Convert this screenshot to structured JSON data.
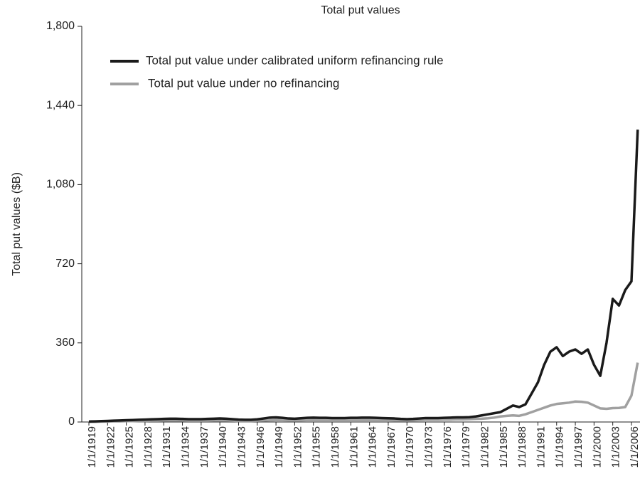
{
  "chart_data": {
    "type": "line",
    "title": "Total put values",
    "y_label": "Total put values ($B)",
    "categories": [
      "1/1/1919",
      null,
      null,
      "1/1/1922",
      null,
      null,
      "1/1/1925",
      null,
      null,
      "1/1/1928",
      null,
      null,
      "1/1/1931",
      null,
      null,
      "1/1/1934",
      null,
      null,
      "1/1/1937",
      null,
      null,
      "1/1/1940",
      null,
      null,
      "1/1/1943",
      null,
      null,
      "1/1/1946",
      null,
      null,
      "1/1/1949",
      null,
      null,
      "1/1/1952",
      null,
      null,
      "1/1/1955",
      null,
      null,
      "1/1/1958",
      null,
      null,
      "1/1/1961",
      null,
      null,
      "1/1/1964",
      null,
      null,
      "1/1/1967",
      null,
      null,
      "1/1/1970",
      null,
      null,
      "1/1/1973",
      null,
      null,
      "1/1/1976",
      null,
      null,
      "1/1/1979",
      null,
      null,
      "1/1/1982",
      null,
      null,
      "1/1/1985",
      null,
      null,
      "1/1/1988",
      null,
      null,
      "1/1/1991",
      null,
      null,
      "1/1/1994",
      null,
      null,
      "1/1/1997",
      null,
      null,
      "1/1/2000",
      null,
      null,
      "1/1/2003",
      null,
      null,
      "1/1/2006",
      null
    ],
    "series": [
      {
        "name": "Total put value under calibrated uniform refinancing rule",
        "color": "#1a1a1a",
        "values": [
          2,
          3,
          4,
          5,
          6,
          7,
          8,
          9,
          10,
          11,
          12,
          13,
          14,
          15,
          15,
          14,
          13,
          13,
          13,
          14,
          15,
          16,
          15,
          13,
          11,
          10,
          10,
          12,
          16,
          20,
          21,
          19,
          16,
          15,
          17,
          19,
          20,
          19,
          19,
          18,
          18,
          18,
          19,
          19,
          20,
          20,
          19,
          18,
          17,
          16,
          14,
          13,
          14,
          16,
          18,
          18,
          18,
          19,
          20,
          21,
          21,
          22,
          25,
          30,
          35,
          40,
          45,
          60,
          75,
          68,
          80,
          130,
          180,
          260,
          320,
          340,
          300,
          320,
          330,
          310,
          330,
          260,
          210,
          360,
          560,
          530,
          600,
          640,
          1330
        ]
      },
      {
        "name": "Total put value under no refinancing",
        "color": "#a0a0a0",
        "values": [
          1,
          1,
          2,
          2,
          3,
          3,
          4,
          4,
          5,
          5,
          6,
          6,
          7,
          7,
          7,
          7,
          6,
          6,
          6,
          6,
          7,
          7,
          7,
          6,
          5,
          5,
          5,
          6,
          7,
          8,
          9,
          9,
          8,
          8,
          8,
          9,
          9,
          9,
          9,
          9,
          9,
          9,
          9,
          9,
          9,
          9,
          9,
          9,
          9,
          8,
          8,
          8,
          8,
          9,
          10,
          10,
          10,
          11,
          11,
          12,
          12,
          13,
          14,
          15,
          17,
          20,
          25,
          28,
          30,
          28,
          35,
          45,
          55,
          65,
          75,
          82,
          85,
          88,
          93,
          92,
          88,
          75,
          62,
          60,
          63,
          64,
          68,
          120,
          270
        ]
      }
    ],
    "ylim": [
      0,
      1800
    ],
    "yticks": [
      0,
      360,
      720,
      {
        "value": 1080,
        "label": "1,080"
      },
      {
        "value": 1440,
        "label": "1,440"
      },
      {
        "value": 1800,
        "label": "1,800"
      }
    ],
    "grid": false,
    "legend": "upper left"
  }
}
